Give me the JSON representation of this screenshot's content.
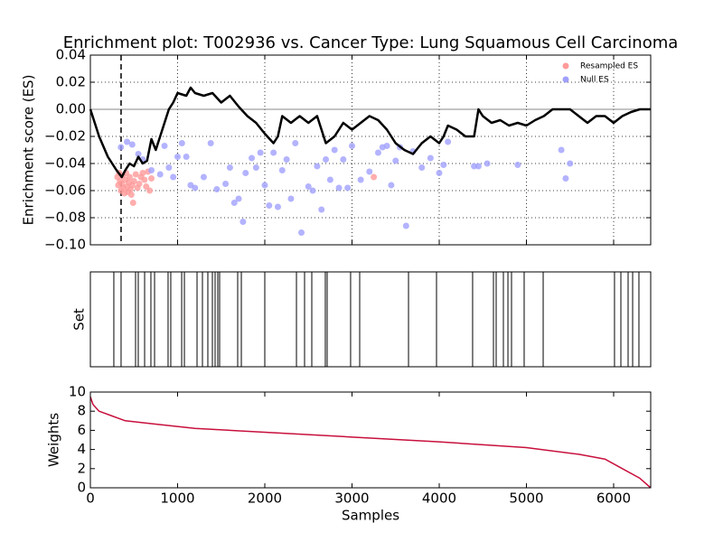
{
  "chart_data": [
    {
      "type": "line",
      "title": "Enrichment plot: T002936 vs. Cancer Type: Lung Squamous Cell Carcinoma",
      "y_label": "Enrichment score (ES)",
      "xlim": [
        0,
        6425
      ],
      "ylim": [
        -0.1,
        0.04
      ],
      "xticks": [
        0,
        1000,
        2000,
        3000,
        4000,
        5000,
        6000
      ],
      "yticks": [
        {
          "value": -0.1,
          "label": "−0.10"
        },
        {
          "value": -0.08,
          "label": "−0.08"
        },
        {
          "value": -0.06,
          "label": "−0.06"
        },
        {
          "value": -0.04,
          "label": "−0.04"
        },
        {
          "value": -0.02,
          "label": "−0.02"
        },
        {
          "value": 0,
          "label": "0.00"
        },
        0.02,
        0.04
      ],
      "grid": true,
      "legend": "upper right",
      "vline_x": 352,
      "series": [
        {
          "type": "scatter",
          "name": "Resampled ES",
          "color": "#ff9a9a",
          "x": [
            310,
            320,
            330,
            340,
            350,
            360,
            370,
            380,
            390,
            400,
            410,
            420,
            430,
            440,
            450,
            460,
            470,
            480,
            490,
            500,
            520,
            540,
            560,
            580,
            600,
            620,
            640,
            660,
            680,
            700,
            3250
          ],
          "values": [
            -0.05,
            -0.056,
            -0.047,
            -0.053,
            -0.06,
            -0.055,
            -0.049,
            -0.058,
            -0.062,
            -0.052,
            -0.047,
            -0.057,
            -0.061,
            -0.054,
            -0.05,
            -0.059,
            -0.063,
            -0.056,
            -0.069,
            -0.053,
            -0.048,
            -0.058,
            -0.055,
            -0.05,
            -0.047,
            -0.052,
            -0.057,
            -0.046,
            -0.06,
            -0.051,
            -0.05
          ]
        },
        {
          "type": "scatter",
          "name": "Null ES",
          "color": "#a0a0ff",
          "x": [
            350,
            420,
            480,
            550,
            600,
            700,
            800,
            850,
            900,
            950,
            1000,
            1050,
            1100,
            1150,
            1200,
            1300,
            1380,
            1450,
            1550,
            1600,
            1650,
            1700,
            1750,
            1780,
            1850,
            1900,
            1950,
            2000,
            2050,
            2100,
            2150,
            2200,
            2250,
            2300,
            2350,
            2420,
            2500,
            2550,
            2600,
            2650,
            2700,
            2750,
            2800,
            2850,
            2900,
            2950,
            3000,
            3100,
            3200,
            3300,
            3350,
            3400,
            3450,
            3500,
            3550,
            3620,
            3700,
            3800,
            3900,
            4000,
            4050,
            4100,
            4400,
            4450,
            4550,
            4900,
            5400,
            5450,
            5500
          ],
          "values": [
            -0.028,
            -0.024,
            -0.026,
            -0.033,
            -0.037,
            -0.045,
            -0.048,
            -0.027,
            -0.043,
            -0.05,
            -0.035,
            -0.025,
            -0.035,
            -0.056,
            -0.058,
            -0.05,
            -0.025,
            -0.059,
            -0.055,
            -0.043,
            -0.069,
            -0.066,
            -0.083,
            -0.047,
            -0.036,
            -0.043,
            -0.032,
            -0.056,
            -0.071,
            -0.032,
            -0.072,
            -0.045,
            -0.037,
            -0.066,
            -0.025,
            -0.091,
            -0.057,
            -0.06,
            -0.042,
            -0.074,
            -0.037,
            -0.052,
            -0.03,
            -0.058,
            -0.037,
            -0.058,
            -0.027,
            -0.052,
            -0.046,
            -0.032,
            -0.028,
            -0.027,
            -0.056,
            -0.038,
            -0.028,
            -0.086,
            -0.031,
            -0.043,
            -0.036,
            -0.047,
            -0.041,
            -0.024,
            -0.042,
            -0.042,
            -0.04,
            -0.041,
            -0.03,
            -0.051,
            -0.04
          ]
        },
        {
          "type": "line",
          "color": "#000000",
          "x": [
            0,
            100,
            200,
            300,
            360,
            400,
            450,
            500,
            550,
            600,
            650,
            700,
            750,
            800,
            850,
            900,
            950,
            1000,
            1100,
            1150,
            1200,
            1300,
            1400,
            1500,
            1600,
            1700,
            1800,
            1900,
            2000,
            2100,
            2150,
            2200,
            2300,
            2400,
            2500,
            2600,
            2700,
            2800,
            2900,
            3000,
            3100,
            3200,
            3300,
            3400,
            3500,
            3600,
            3700,
            3800,
            3900,
            4000,
            4050,
            4100,
            4200,
            4300,
            4400,
            4450,
            4500,
            4600,
            4700,
            4800,
            4900,
            5000,
            5100,
            5200,
            5300,
            5400,
            5500,
            5600,
            5700,
            5800,
            5900,
            6000,
            6100,
            6200,
            6300,
            6425
          ],
          "values": [
            0,
            -0.02,
            -0.035,
            -0.045,
            -0.05,
            -0.045,
            -0.04,
            -0.042,
            -0.035,
            -0.04,
            -0.038,
            -0.022,
            -0.03,
            -0.02,
            -0.01,
            0,
            0.005,
            0.012,
            0.01,
            0.016,
            0.012,
            0.01,
            0.012,
            0.005,
            0.01,
            0.002,
            -0.005,
            -0.01,
            -0.018,
            -0.025,
            -0.02,
            -0.005,
            -0.01,
            -0.005,
            -0.01,
            -0.005,
            -0.025,
            -0.02,
            -0.01,
            -0.015,
            -0.01,
            -0.005,
            -0.008,
            -0.015,
            -0.025,
            -0.03,
            -0.033,
            -0.025,
            -0.02,
            -0.025,
            -0.02,
            -0.012,
            -0.015,
            -0.02,
            -0.02,
            0,
            -0.005,
            -0.01,
            -0.008,
            -0.012,
            -0.01,
            -0.012,
            -0.008,
            -0.005,
            0,
            0,
            0,
            -0.005,
            -0.01,
            -0.005,
            -0.005,
            -0.01,
            -0.005,
            -0.002,
            0,
            0
          ]
        }
      ]
    },
    {
      "type": "event",
      "y_label": "Set",
      "xlim": [
        0,
        6425
      ],
      "color": "#000000",
      "x": [
        269,
        352,
        518,
        549,
        622,
        694,
        736,
        891,
        922,
        1047,
        1078,
        1223,
        1285,
        1347,
        1399,
        1430,
        1461,
        1482,
        1689,
        1731,
        2000,
        2363,
        2456,
        2539,
        2694,
        2715,
        2984,
        3088,
        3648,
        3969,
        4383,
        4622,
        4653,
        4736,
        4788,
        4829,
        4974,
        5192,
        6010,
        6083,
        6166,
        6218,
        6290
      ]
    },
    {
      "type": "line",
      "y_label": "Weights",
      "x_label": "Samples",
      "xlim": [
        0,
        6425
      ],
      "ylim": [
        0,
        10
      ],
      "xticks": [
        0,
        1000,
        2000,
        3000,
        4000,
        5000,
        6000
      ],
      "yticks": [
        0,
        2,
        4,
        6,
        8,
        10
      ],
      "series": [
        {
          "type": "line",
          "color": "#c8103c",
          "x": [
            0,
            30,
            100,
            250,
            400,
            700,
            1200,
            2000,
            3000,
            4000,
            5000,
            5600,
            5900,
            6100,
            6300,
            6425
          ],
          "values": [
            9.5,
            8.7,
            8,
            7.5,
            7,
            6.7,
            6.2,
            5.8,
            5.3,
            4.8,
            4.2,
            3.5,
            3,
            2,
            1,
            0
          ]
        }
      ]
    }
  ]
}
